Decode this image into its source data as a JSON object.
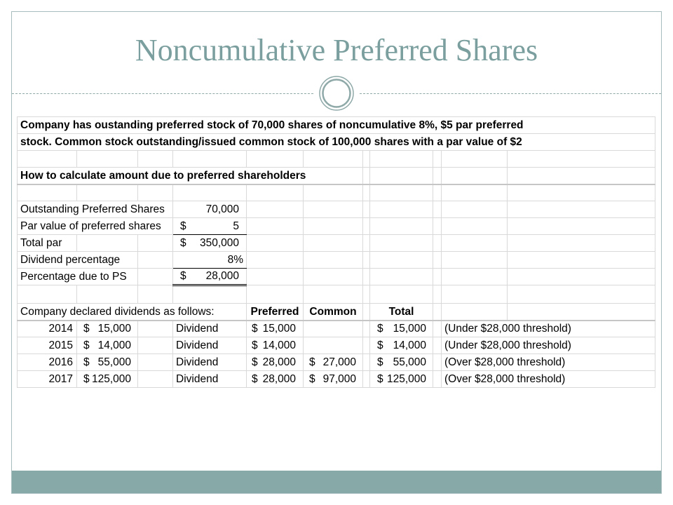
{
  "theme": {
    "title_color": "#7B9F9E",
    "frame_color": "#A7BCBC",
    "band_color": "#87A9A8",
    "ornament_color": "#8EA9A8",
    "gridline_color": "#D9D9D9"
  },
  "slide": {
    "title": "Noncumulative Preferred Shares"
  },
  "sheet": {
    "intro": [
      "Company has oustanding preferred stock of 70,000 shares of noncumulative 8%, $5 par preferred",
      "stock. Common stock outstanding/issued common stock of 100,000 shares with a par value of $2"
    ],
    "section_heading": "How to calculate amount due to preferred shareholders",
    "calc": [
      {
        "label": "Outstanding Preferred Shares",
        "amt": "70,000"
      },
      {
        "label": "Par value of preferred shares",
        "cur": "$",
        "amt": "5"
      },
      {
        "label": "Total par",
        "cur": "$",
        "amt": "350,000"
      },
      {
        "label": "Dividend percentage",
        "amt": "8%"
      },
      {
        "label": "Percentage due to PS",
        "cur": "$",
        "amt": "28,000"
      }
    ],
    "dividends_caption": "Company declared dividends as follows:",
    "headers": {
      "preferred": "Preferred",
      "common": "Common",
      "total": "Total"
    },
    "dividends": [
      {
        "year": "2014",
        "declared": {
          "cur": "$",
          "amt": "15,000"
        },
        "type": "Dividend",
        "preferred": {
          "cur": "$",
          "amt": "15,000"
        },
        "total": {
          "cur": "$",
          "amt": "15,000"
        },
        "note": "(Under $28,000 threshold)"
      },
      {
        "year": "2015",
        "declared": {
          "cur": "$",
          "amt": "14,000"
        },
        "type": "Dividend",
        "preferred": {
          "cur": "$",
          "amt": "14,000"
        },
        "total": {
          "cur": "$",
          "amt": "14,000"
        },
        "note": "(Under $28,000 threshold)"
      },
      {
        "year": "2016",
        "declared": {
          "cur": "$",
          "amt": "55,000"
        },
        "type": "Dividend",
        "preferred": {
          "cur": "$",
          "amt": "28,000"
        },
        "common": {
          "cur": "$",
          "amt": "27,000"
        },
        "total": {
          "cur": "$",
          "amt": "55,000"
        },
        "note": "(Over $28,000 threshold)"
      },
      {
        "year": "2017",
        "declared": {
          "cur": "$",
          "amt": "125,000"
        },
        "type": "Dividend",
        "preferred": {
          "cur": "$",
          "amt": "28,000"
        },
        "common": {
          "cur": "$",
          "amt": "97,000"
        },
        "total": {
          "cur": "$",
          "amt": "125,000"
        },
        "note": "(Over $28,000 threshold)"
      }
    ]
  }
}
